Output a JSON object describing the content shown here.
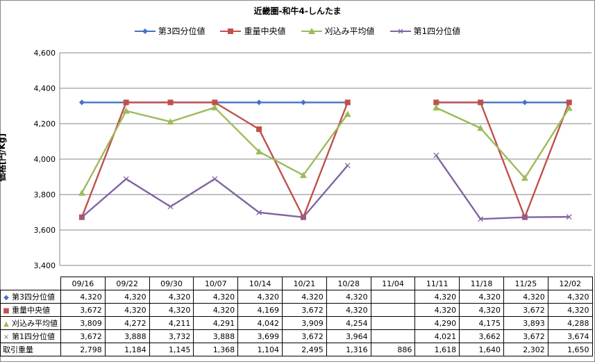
{
  "colors": {
    "q3": "#4472C4",
    "median": "#C0504D",
    "mean": "#9BBB59",
    "q1": "#8064A2",
    "grid": "#868686"
  },
  "chart_data": {
    "type": "line",
    "title": "近畿圏-和牛4-しんたま",
    "ylabel": "価格[円/Kg]",
    "ylim": [
      3400,
      4600
    ],
    "yticks": [
      "3,400",
      "3,600",
      "3,800",
      "4,000",
      "4,200",
      "4,400",
      "4,600"
    ],
    "categories": [
      "09/16",
      "09/22",
      "09/30",
      "10/07",
      "10/14",
      "10/21",
      "10/28",
      "11/04",
      "11/11",
      "11/18",
      "11/25",
      "12/02"
    ],
    "series": [
      {
        "key": "q3",
        "name": "第3四分位値",
        "marker": "diamond",
        "values": [
          4320,
          4320,
          4320,
          4320,
          4320,
          4320,
          4320,
          null,
          4320,
          4320,
          4320,
          4320
        ],
        "labels": [
          "4,320",
          "4,320",
          "4,320",
          "4,320",
          "4,320",
          "4,320",
          "4,320",
          "",
          "4,320",
          "4,320",
          "4,320",
          "4,320"
        ]
      },
      {
        "key": "median",
        "name": "重量中央値",
        "marker": "square",
        "values": [
          3672,
          4320,
          4320,
          4320,
          4169,
          3672,
          4320,
          null,
          4320,
          4320,
          3672,
          4320
        ],
        "labels": [
          "3,672",
          "4,320",
          "4,320",
          "4,320",
          "4,169",
          "3,672",
          "4,320",
          "",
          "4,320",
          "4,320",
          "3,672",
          "4,320"
        ]
      },
      {
        "key": "mean",
        "name": "刈込み平均値",
        "marker": "triangle",
        "values": [
          3809,
          4272,
          4211,
          4291,
          4042,
          3909,
          4254,
          null,
          4290,
          4175,
          3893,
          4288
        ],
        "labels": [
          "3,809",
          "4,272",
          "4,211",
          "4,291",
          "4,042",
          "3,909",
          "4,254",
          "",
          "4,290",
          "4,175",
          "3,893",
          "4,288"
        ]
      },
      {
        "key": "q1",
        "name": "第1四分位値",
        "marker": "x",
        "values": [
          3672,
          3888,
          3732,
          3888,
          3699,
          3672,
          3964,
          null,
          4021,
          3662,
          3672,
          3674
        ],
        "labels": [
          "3,672",
          "3,888",
          "3,732",
          "3,888",
          "3,699",
          "3,672",
          "3,964",
          "",
          "4,021",
          "3,662",
          "3,672",
          "3,674"
        ]
      }
    ],
    "extra_row": {
      "name": "取引重量",
      "values": [
        2798,
        1184,
        1145,
        1368,
        1104,
        2495,
        1316,
        886,
        1618,
        1640,
        2302,
        1650
      ],
      "labels": [
        "2,798",
        "1,184",
        "1,145",
        "1,368",
        "1,104",
        "2,495",
        "1,316",
        "886",
        "1,618",
        "1,640",
        "2,302",
        "1,650"
      ]
    },
    "legend_position": "top",
    "grid": true
  }
}
